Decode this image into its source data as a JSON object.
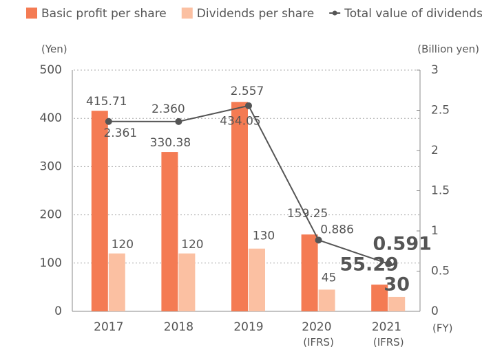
{
  "chart_data": {
    "type": "bar_line",
    "categories": [
      "2017",
      "2018",
      "2019",
      "2020 (IFRS)",
      "2021 (IFRS)"
    ],
    "series": [
      {
        "name": "Basic profit per share",
        "color": "#f47b53",
        "values": [
          415.71,
          330.38,
          434.05,
          159.25,
          55.29
        ]
      },
      {
        "name": "Dividends per share",
        "color": "#fbc0a2",
        "values": [
          120,
          120,
          130,
          45,
          30
        ]
      },
      {
        "name": "Total value of dividends",
        "color": "#555555",
        "axis": "y2",
        "values": [
          2.361,
          2.36,
          2.557,
          0.886,
          0.591
        ],
        "value_labels": [
          "2.361",
          "2.360",
          "2.557",
          "0.886",
          "0.591"
        ]
      }
    ],
    "ylabel": "(Yen)",
    "y2label": "(Billion yen)",
    "xlabel": "(FY)",
    "ylim": [
      0,
      500
    ],
    "yticks": [
      0,
      100,
      200,
      300,
      400,
      500
    ],
    "y2lim": [
      0,
      3
    ],
    "y2ticks": [
      0,
      0.5,
      1,
      1.5,
      2,
      2.5,
      3
    ],
    "grid": true
  }
}
